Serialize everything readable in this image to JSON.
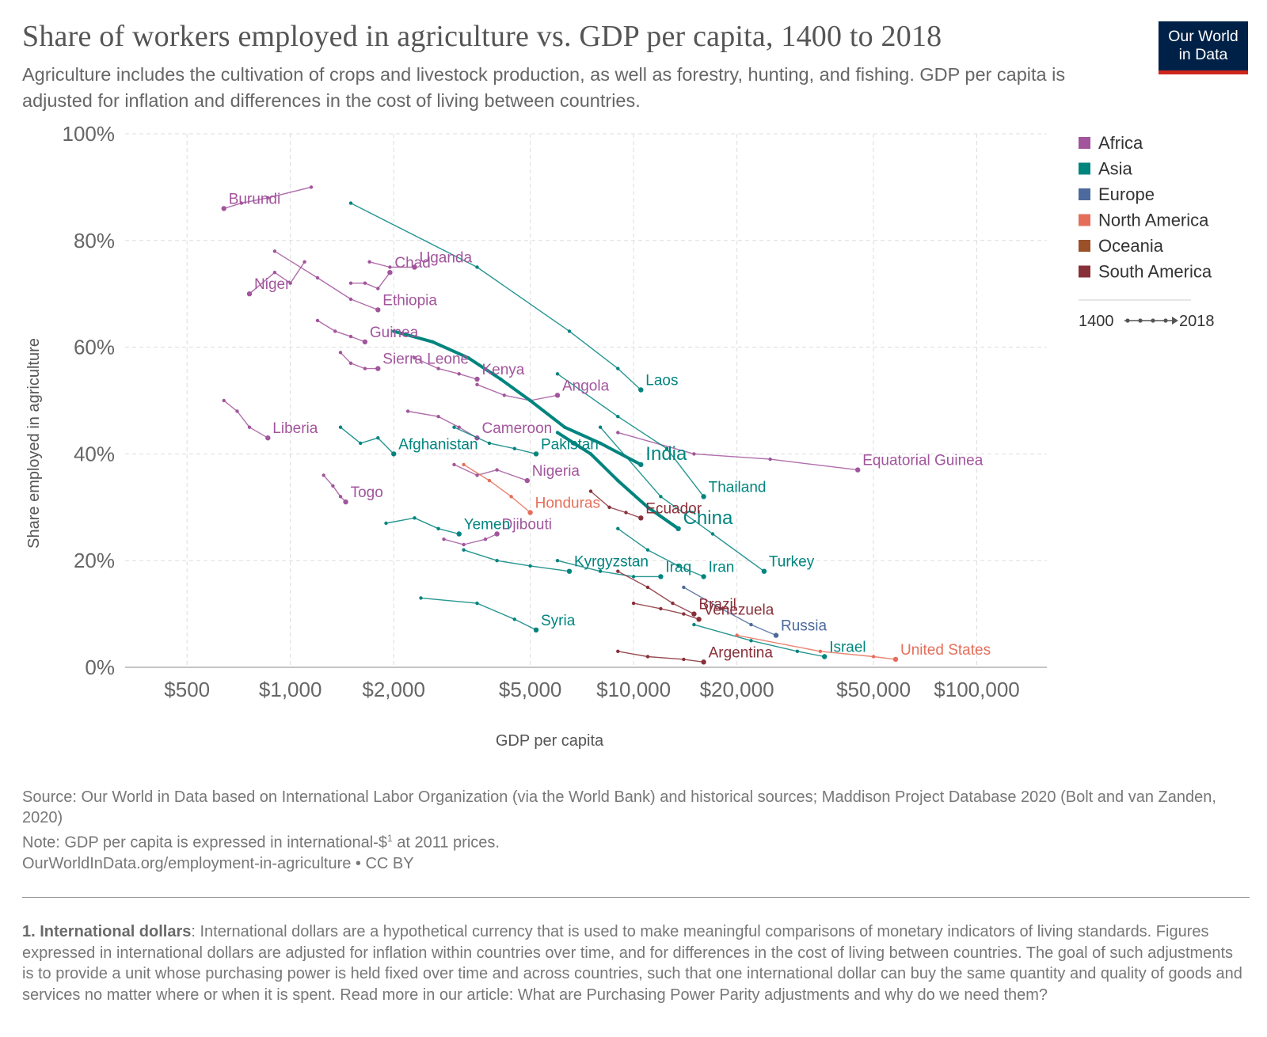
{
  "header": {
    "title": "Share of workers employed in agriculture vs. GDP per capita, 1400 to 2018",
    "subtitle": "Agriculture includes the cultivation of crops and livestock production, as well as forestry, hunting, and fishing. GDP per capita is adjusted for inflation and differences in the cost of living between countries.",
    "logo_line1": "Our World",
    "logo_line2": "in Data"
  },
  "colors": {
    "Africa": "#a2559c",
    "Asia": "#00847e",
    "Europe": "#4c6a9c",
    "North America": "#e56e5a",
    "Oceania": "#9a5129",
    "South America": "#883039",
    "logo_bg": "#002147",
    "logo_bar": "#ce261e"
  },
  "legend": {
    "items": [
      "Africa",
      "Asia",
      "Europe",
      "North America",
      "Oceania",
      "South America"
    ],
    "time_start": "1400",
    "time_end": "2018"
  },
  "chart_data": {
    "type": "scatter",
    "xlabel": "GDP per capita",
    "ylabel": "Share employed in agriculture",
    "xscale": "log",
    "xlim": [
      330,
      160000
    ],
    "ylim": [
      0,
      100
    ],
    "xticks": [
      500,
      1000,
      2000,
      5000,
      10000,
      20000,
      50000,
      100000
    ],
    "xtick_labels": [
      "$500",
      "$1,000",
      "$2,000",
      "$5,000",
      "$10,000",
      "$20,000",
      "$50,000",
      "$100,000"
    ],
    "yticks": [
      0,
      20,
      40,
      60,
      80,
      100
    ],
    "ytick_labels": [
      "0%",
      "20%",
      "40%",
      "60%",
      "80%",
      "100%"
    ],
    "grid": true,
    "legend_position": "right",
    "series": [
      {
        "name": "Burundi",
        "region": "Africa",
        "x": [
          1150,
          860,
          720,
          640
        ],
        "y": [
          90,
          88,
          87,
          86
        ]
      },
      {
        "name": "Niger",
        "region": "Africa",
        "x": [
          1100,
          1000,
          900,
          760
        ],
        "y": [
          76,
          72,
          74,
          70
        ]
      },
      {
        "name": "Chad",
        "region": "Africa",
        "x": [
          1500,
          1650,
          1800,
          1950
        ],
        "y": [
          72,
          72,
          71,
          74
        ]
      },
      {
        "name": "Uganda",
        "region": "Africa",
        "x": [
          1700,
          1950,
          2300
        ],
        "y": [
          76,
          75,
          75
        ]
      },
      {
        "name": "Ethiopia",
        "region": "Africa",
        "x": [
          900,
          1200,
          1500,
          1800
        ],
        "y": [
          78,
          73,
          69,
          67
        ]
      },
      {
        "name": "Guinea",
        "region": "Africa",
        "x": [
          1200,
          1350,
          1500,
          1650
        ],
        "y": [
          65,
          63,
          62,
          61
        ]
      },
      {
        "name": "Sierra Leone",
        "region": "Africa",
        "x": [
          1400,
          1500,
          1650,
          1800
        ],
        "y": [
          59,
          57,
          56,
          56
        ]
      },
      {
        "name": "Kenya",
        "region": "Africa",
        "x": [
          2300,
          2700,
          3100,
          3500
        ],
        "y": [
          58,
          56,
          55,
          54
        ]
      },
      {
        "name": "Angola",
        "region": "Africa",
        "x": [
          3500,
          4200,
          5000,
          6000
        ],
        "y": [
          53,
          51,
          50,
          51
        ]
      },
      {
        "name": "Liberia",
        "region": "Africa",
        "x": [
          640,
          700,
          760,
          860
        ],
        "y": [
          50,
          48,
          45,
          43
        ]
      },
      {
        "name": "Cameroon",
        "region": "Africa",
        "x": [
          2200,
          2700,
          3100,
          3500
        ],
        "y": [
          48,
          47,
          45,
          43
        ]
      },
      {
        "name": "Nigeria",
        "region": "Africa",
        "x": [
          3000,
          3500,
          4000,
          4900
        ],
        "y": [
          38,
          36,
          37,
          35
        ]
      },
      {
        "name": "Togo",
        "region": "Africa",
        "x": [
          1250,
          1330,
          1400,
          1450
        ],
        "y": [
          36,
          34,
          32,
          31
        ]
      },
      {
        "name": "Djibouti",
        "region": "Africa",
        "x": [
          2800,
          3200,
          3700,
          4000
        ],
        "y": [
          24,
          23,
          24,
          25
        ]
      },
      {
        "name": "Equatorial Guinea",
        "region": "Africa",
        "x": [
          9000,
          15000,
          25000,
          45000
        ],
        "y": [
          44,
          40,
          39,
          37
        ]
      },
      {
        "name": "India",
        "region": "Asia",
        "x": [
          2000,
          2600,
          3300,
          4100,
          5000,
          6300,
          8000,
          10500
        ],
        "y": [
          63,
          61,
          58,
          54,
          50,
          45,
          42,
          38
        ]
      },
      {
        "name": "China",
        "region": "Asia",
        "x": [
          6000,
          7500,
          9000,
          11000,
          13500
        ],
        "y": [
          44,
          40,
          35,
          30,
          26
        ]
      },
      {
        "name": "Laos",
        "region": "Asia",
        "x": [
          1500,
          3500,
          6500,
          9000,
          10500
        ],
        "y": [
          87,
          75,
          63,
          56,
          52
        ]
      },
      {
        "name": "Thailand",
        "region": "Asia",
        "x": [
          6000,
          9000,
          12500,
          16000
        ],
        "y": [
          55,
          47,
          41,
          32
        ]
      },
      {
        "name": "Pakistan",
        "region": "Asia",
        "x": [
          3000,
          3800,
          4500,
          5200
        ],
        "y": [
          45,
          42,
          41,
          40
        ]
      },
      {
        "name": "Afghanistan",
        "region": "Asia",
        "x": [
          1400,
          1600,
          1800,
          2000
        ],
        "y": [
          45,
          42,
          43,
          40
        ]
      },
      {
        "name": "Yemen",
        "region": "Asia",
        "x": [
          1900,
          2300,
          2700,
          3100
        ],
        "y": [
          27,
          28,
          26,
          25
        ]
      },
      {
        "name": "Kyrgyzstan",
        "region": "Asia",
        "x": [
          3200,
          4000,
          5000,
          6500
        ],
        "y": [
          22,
          20,
          19,
          18
        ]
      },
      {
        "name": "Iraq",
        "region": "Asia",
        "x": [
          6000,
          8000,
          10000,
          12000
        ],
        "y": [
          20,
          18,
          17,
          17
        ]
      },
      {
        "name": "Iran",
        "region": "Asia",
        "x": [
          9000,
          11000,
          13500,
          16000
        ],
        "y": [
          26,
          22,
          19,
          17
        ]
      },
      {
        "name": "Turkey",
        "region": "Asia",
        "x": [
          8000,
          12000,
          17000,
          24000
        ],
        "y": [
          45,
          32,
          25,
          18
        ]
      },
      {
        "name": "Syria",
        "region": "Asia",
        "x": [
          2400,
          3500,
          4500,
          5200
        ],
        "y": [
          13,
          12,
          9,
          7
        ]
      },
      {
        "name": "Israel",
        "region": "Asia",
        "x": [
          15000,
          22000,
          30000,
          36000
        ],
        "y": [
          8,
          5,
          3,
          2
        ]
      },
      {
        "name": "Honduras",
        "region": "North America",
        "x": [
          3200,
          3800,
          4400,
          5000
        ],
        "y": [
          38,
          35,
          32,
          29
        ]
      },
      {
        "name": "United States",
        "region": "North America",
        "x": [
          20000,
          35000,
          50000,
          58000
        ],
        "y": [
          6,
          3,
          2,
          1.5
        ]
      },
      {
        "name": "Russia",
        "region": "Europe",
        "x": [
          14000,
          18000,
          22000,
          26000
        ],
        "y": [
          15,
          11,
          8,
          6
        ]
      },
      {
        "name": "Ecuador",
        "region": "South America",
        "x": [
          7500,
          8500,
          9500,
          10500
        ],
        "y": [
          33,
          30,
          29,
          28
        ]
      },
      {
        "name": "Brazil",
        "region": "South America",
        "x": [
          9000,
          11000,
          13000,
          15000
        ],
        "y": [
          18,
          15,
          12,
          10
        ]
      },
      {
        "name": "Venezuela",
        "region": "South America",
        "x": [
          10000,
          12000,
          14000,
          15500
        ],
        "y": [
          12,
          11,
          10,
          9
        ]
      },
      {
        "name": "Argentina",
        "region": "South America",
        "x": [
          9000,
          11000,
          14000,
          16000
        ],
        "y": [
          3,
          2,
          1.5,
          1
        ]
      }
    ]
  },
  "notes": {
    "source": "Source: Our World in Data based on International Labor Organization (via the World Bank) and historical sources; Maddison Project Database 2020 (Bolt and van Zanden, 2020)",
    "note_prefix": "Note: GDP per capita is expressed in international-$",
    "note_sup": "1",
    "note_suffix": " at 2011 prices.",
    "url": "OurWorldInData.org/employment-in-agriculture • CC BY"
  },
  "footnote": {
    "term": "1. International dollars",
    "text": ": International dollars are a hypothetical currency that is used to make meaningful comparisons of monetary indicators of living standards. Figures expressed in international dollars are adjusted for inflation within countries over time, and for differences in the cost of living between countries. The goal of such adjustments is to provide a unit whose purchasing power is held fixed over time and across countries, such that one international dollar can buy the same quantity and quality of goods and services no matter where or when it is spent. Read more in our article: What are Purchasing Power Parity adjustments and why do we need them?"
  }
}
